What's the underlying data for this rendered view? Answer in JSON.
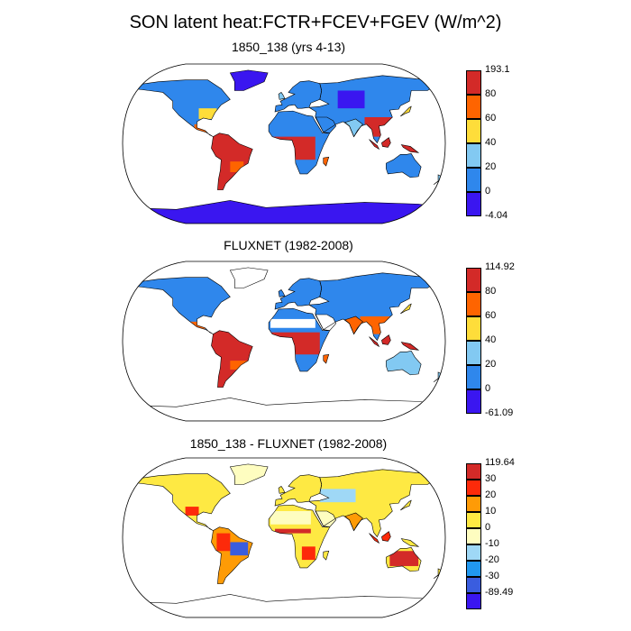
{
  "title": "SON latent heat:FCTR+FCEV+FGEV (W/m^2)",
  "panels": [
    {
      "title": "1850_138 (yrs 4-13)",
      "colorbar": {
        "labels": [
          "193.1",
          "80",
          "60",
          "40",
          "20",
          "0",
          "-4.04"
        ],
        "colors": [
          "#d32a28",
          "#fe6400",
          "#fedd3a",
          "#82c9f2",
          "#2f87ec",
          "#3a16f0"
        ]
      }
    },
    {
      "title": "FLUXNET (1982-2008)",
      "colorbar": {
        "labels": [
          "114.92",
          "80",
          "60",
          "40",
          "20",
          "0",
          "-61.09"
        ],
        "colors": [
          "#d32a28",
          "#fe6400",
          "#fedd3a",
          "#82c9f2",
          "#2f87ec",
          "#3a16f0"
        ]
      }
    },
    {
      "title": "1850_138 - FLUXNET (1982-2008)",
      "colorbar": {
        "labels": [
          "119.64",
          "30",
          "20",
          "10",
          "0",
          "-10",
          "-20",
          "-30",
          "-89.49"
        ],
        "colors": [
          "#d32a28",
          "#fd2a0a",
          "#fe9b06",
          "#fee943",
          "#fefdc0",
          "#9fd8f6",
          "#2198f0",
          "#3a5ddf",
          "#3a16f0"
        ]
      }
    }
  ]
}
